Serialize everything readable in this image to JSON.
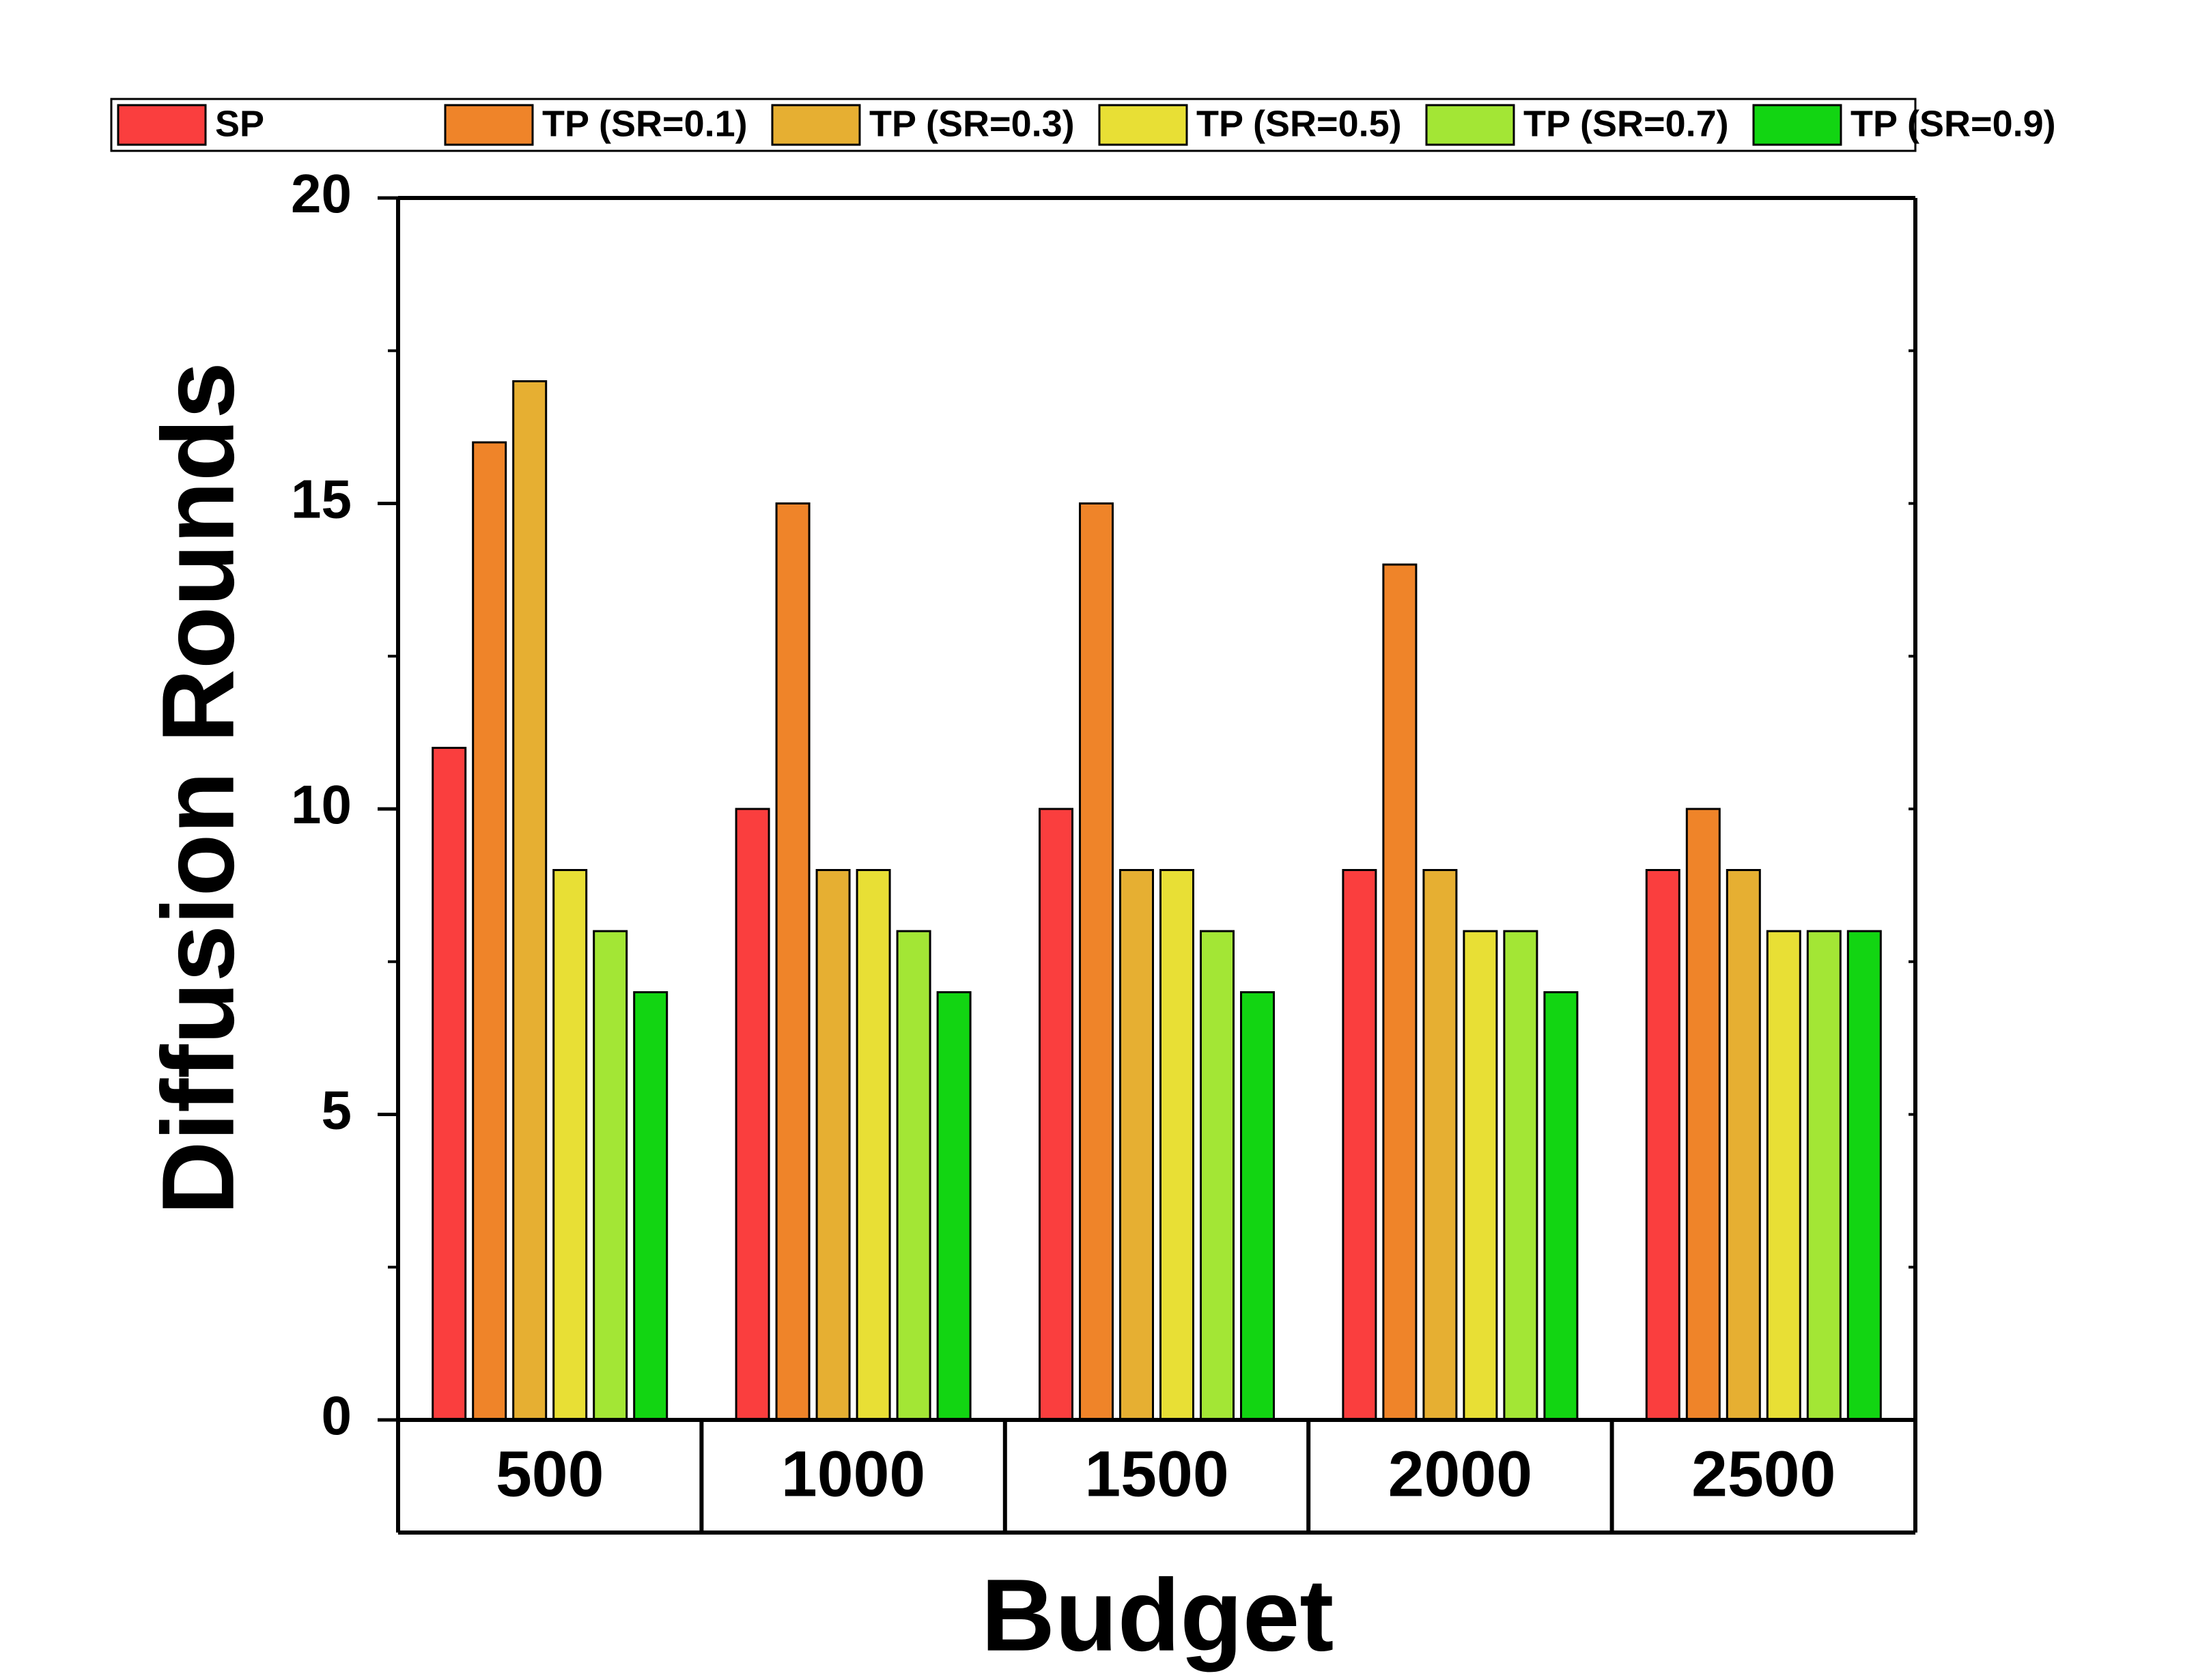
{
  "chart_data": {
    "type": "bar",
    "title": "",
    "xlabel": "Budget",
    "ylabel": "Diffusion Rounds",
    "categories": [
      "500",
      "1000",
      "1500",
      "2000",
      "2500"
    ],
    "ylim": [
      0,
      20
    ],
    "yticks": [
      "0",
      "5",
      "10",
      "15",
      "20"
    ],
    "grid": false,
    "legend_position": "top",
    "series": [
      {
        "name": "SP",
        "color": "#fa3e3e",
        "values": [
          11,
          10,
          10,
          9,
          9
        ]
      },
      {
        "name": "TP (SR=0.1)",
        "color": "#ef8429",
        "values": [
          16,
          15,
          15,
          14,
          10
        ]
      },
      {
        "name": "TP (SR=0.3)",
        "color": "#e6af32",
        "values": [
          17,
          9,
          9,
          9,
          9
        ]
      },
      {
        "name": "TP (SR=0.5)",
        "color": "#e8df35",
        "values": [
          9,
          9,
          9,
          8,
          8
        ]
      },
      {
        "name": "TP (SR=0.7)",
        "color": "#a3e635",
        "values": [
          8,
          8,
          8,
          8,
          8
        ]
      },
      {
        "name": "TP (SR=0.9)",
        "color": "#12d512",
        "values": [
          7,
          7,
          7,
          7,
          8
        ]
      }
    ]
  }
}
